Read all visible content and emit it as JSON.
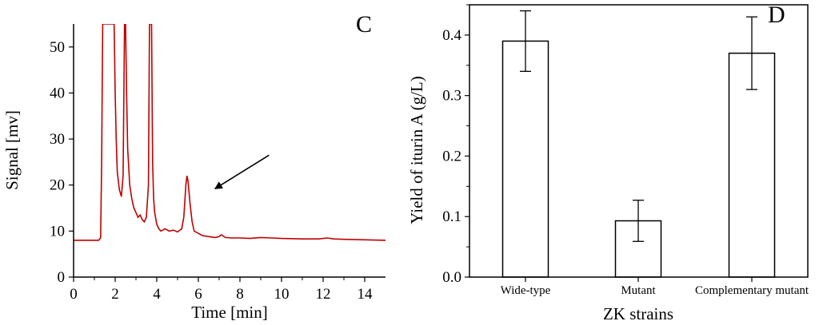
{
  "chart_data": [
    {
      "type": "line",
      "panel_label": "C",
      "xlabel": "Time [min]",
      "ylabel": "Signal [mv]",
      "xlim": [
        0,
        15
      ],
      "ylim": [
        0,
        55
      ],
      "xticks": [
        "0",
        "2",
        "4",
        "6",
        "8",
        "10",
        "12",
        "14"
      ],
      "yticks": [
        "0",
        "10",
        "20",
        "30",
        "40",
        "50"
      ],
      "series": [
        {
          "color": "#c00000",
          "x": [
            0,
            1.2,
            1.3,
            1.35,
            1.4,
            1.45,
            1.9,
            1.95,
            2.0,
            2.05,
            2.1,
            2.2,
            2.3,
            2.38,
            2.45,
            2.5,
            2.55,
            2.6,
            2.7,
            2.8,
            2.9,
            3.0,
            3.1,
            3.2,
            3.3,
            3.4,
            3.5,
            3.6,
            3.65,
            3.7,
            3.75,
            3.8,
            3.85,
            3.9,
            4.0,
            4.1,
            4.2,
            4.4,
            4.6,
            4.8,
            5.0,
            5.2,
            5.3,
            5.4,
            5.45,
            5.5,
            5.6,
            5.7,
            5.8,
            6.0,
            6.2,
            6.5,
            6.8,
            7.0,
            7.1,
            7.3,
            7.6,
            8.0,
            8.5,
            9.0,
            9.5,
            10.0,
            11.0,
            11.8,
            12.2,
            12.5,
            13.0,
            14.0,
            15.0
          ],
          "y": [
            8,
            8,
            8.5,
            25,
            55,
            55,
            55,
            55,
            40,
            30,
            23,
            19,
            17.5,
            22,
            55,
            55,
            40,
            28,
            20,
            17,
            15,
            14,
            13,
            13.5,
            12.5,
            12,
            13,
            20,
            55,
            55,
            55,
            25,
            17,
            14,
            11.5,
            10.5,
            10,
            10.5,
            10,
            10.2,
            9.8,
            10.5,
            13,
            20,
            22,
            21,
            16,
            12,
            10,
            9.5,
            9,
            8.8,
            8.6,
            8.8,
            9.2,
            8.6,
            8.5,
            8.5,
            8.4,
            8.6,
            8.5,
            8.4,
            8.3,
            8.3,
            8.5,
            8.3,
            8.2,
            8.1,
            8
          ]
        }
      ],
      "annotations": [
        {
          "type": "arrow",
          "from": [
            9.4,
            26.5
          ],
          "to": [
            6.8,
            19.2
          ]
        }
      ]
    },
    {
      "type": "bar",
      "panel_label": "D",
      "categories": [
        "Wide-type",
        "Mutant",
        "Complementary mutant"
      ],
      "values": [
        0.39,
        0.093,
        0.37
      ],
      "errors": [
        0.05,
        0.034,
        0.06
      ],
      "xlabel": "ZK strains",
      "ylabel": "Yield of iturin A (g/L)",
      "ylim": [
        0,
        0.45
      ],
      "yticks": [
        "0.0",
        "0.1",
        "0.2",
        "0.3",
        "0.4"
      ]
    }
  ]
}
